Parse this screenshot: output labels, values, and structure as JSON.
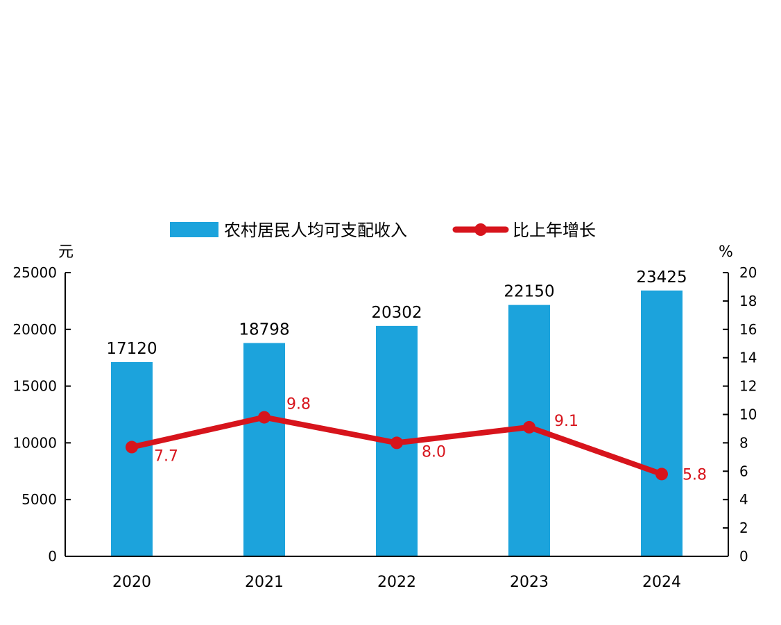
{
  "chart_data": {
    "type": "bar",
    "categories": [
      "2020",
      "2021",
      "2022",
      "2023",
      "2024"
    ],
    "series": [
      {
        "name": "农村居民人均可支配收入",
        "type": "bar",
        "axis": "left",
        "values": [
          17120,
          18798,
          20302,
          22150,
          23425
        ],
        "labels": [
          "17120",
          "18798",
          "20302",
          "22150",
          "23425"
        ],
        "color": "#1ca3dc"
      },
      {
        "name": "比上年增长",
        "type": "line",
        "axis": "right",
        "values": [
          7.7,
          9.8,
          8.0,
          9.1,
          5.8
        ],
        "labels": [
          "7.7",
          "9.8",
          "8.0",
          "9.1",
          "5.8"
        ],
        "color": "#d7141c"
      }
    ],
    "y_left": {
      "unit": "元",
      "ylim": [
        0,
        25000
      ],
      "ticks": [
        0,
        5000,
        10000,
        15000,
        20000,
        25000
      ],
      "tick_labels": [
        "0",
        "5000",
        "10000",
        "15000",
        "20000",
        "25000"
      ]
    },
    "y_right": {
      "unit": "%",
      "ylim": [
        0,
        20
      ],
      "ticks": [
        0,
        2,
        4,
        6,
        8,
        10,
        12,
        14,
        16,
        18,
        20
      ],
      "tick_labels": [
        "0",
        "2",
        "4",
        "6",
        "8",
        "10",
        "12",
        "14",
        "16",
        "18",
        "20"
      ]
    },
    "legend_position": "top-center",
    "grid": false
  }
}
